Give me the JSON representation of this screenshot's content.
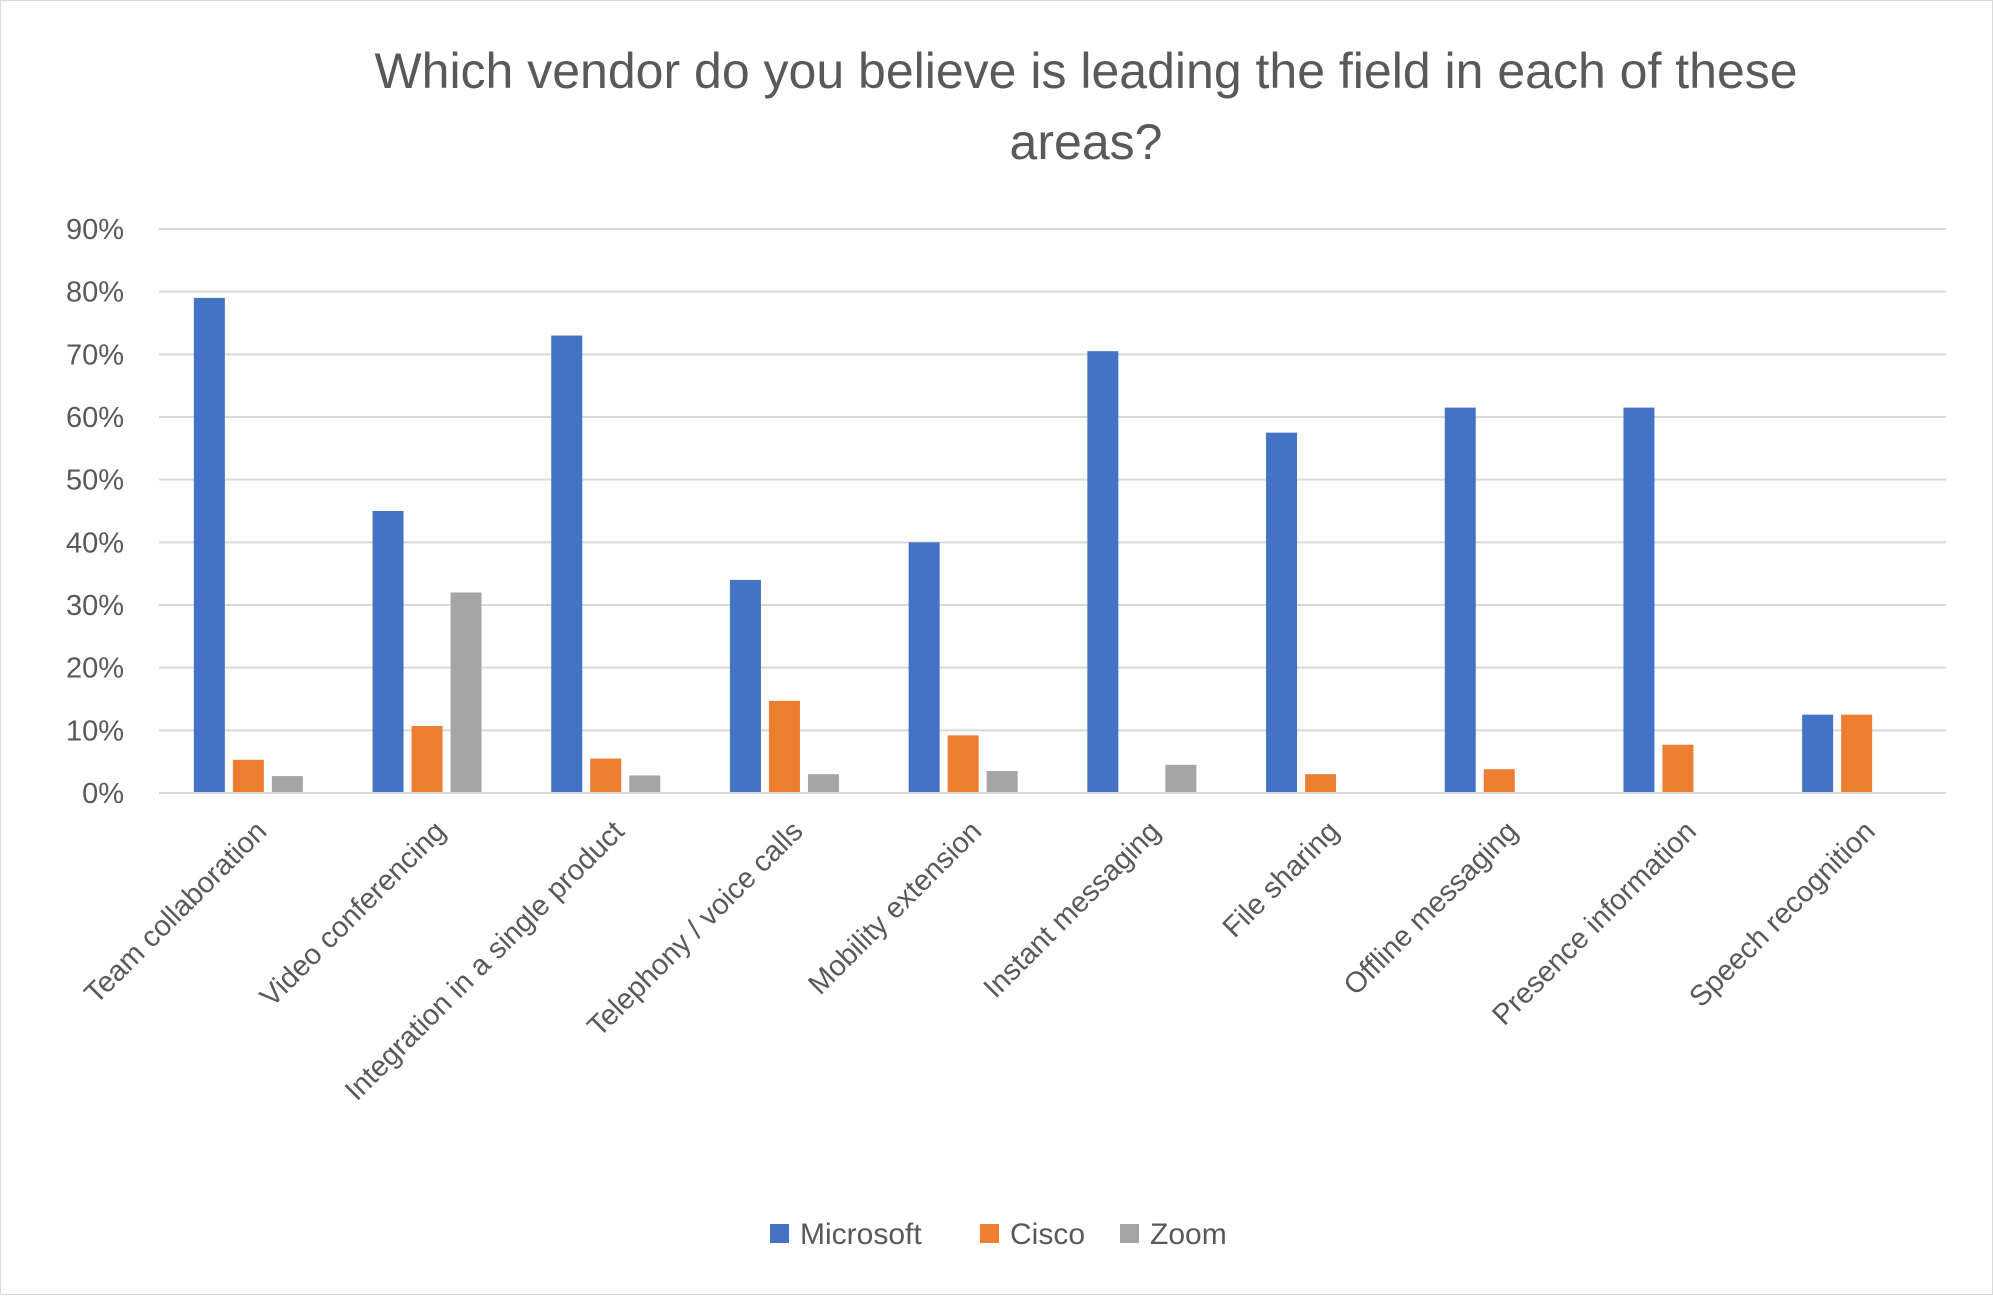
{
  "chart_data": {
    "type": "bar",
    "title": "Which vendor do you believe is leading the field in each of these areas?",
    "title_lines": [
      "Which vendor do you believe is leading the field in each of these",
      "areas?"
    ],
    "xlabel": "",
    "ylabel": "",
    "ylim": [
      0,
      0.9
    ],
    "y_ticks": [
      0,
      0.1,
      0.2,
      0.3,
      0.4,
      0.5,
      0.6,
      0.7,
      0.8,
      0.9
    ],
    "y_tick_labels": [
      "0%",
      "10%",
      "20%",
      "30%",
      "40%",
      "50%",
      "60%",
      "70%",
      "80%",
      "90%"
    ],
    "grid": true,
    "legend_position": "bottom",
    "categories": [
      "Team collaboration",
      "Video conferencing",
      "Integration in a single product",
      "Telephony / voice calls",
      "Mobility extension",
      "Instant messaging",
      "File sharing",
      "Offline messaging",
      "Presence information",
      "Speech recognition"
    ],
    "series": [
      {
        "name": "Microsoft",
        "color": "#4472c4",
        "values": [
          0.79,
          0.45,
          0.73,
          0.34,
          0.4,
          0.705,
          0.575,
          0.615,
          0.615,
          0.125
        ]
      },
      {
        "name": "Cisco",
        "color": "#ed7d31",
        "values": [
          0.053,
          0.107,
          0.055,
          0.147,
          0.092,
          0,
          0.03,
          0.038,
          0.077,
          0.125
        ]
      },
      {
        "name": "Zoom",
        "color": "#a5a5a5",
        "values": [
          0.027,
          0.32,
          0.028,
          0.03,
          0.035,
          0.045,
          0,
          0,
          0,
          0
        ]
      }
    ]
  }
}
